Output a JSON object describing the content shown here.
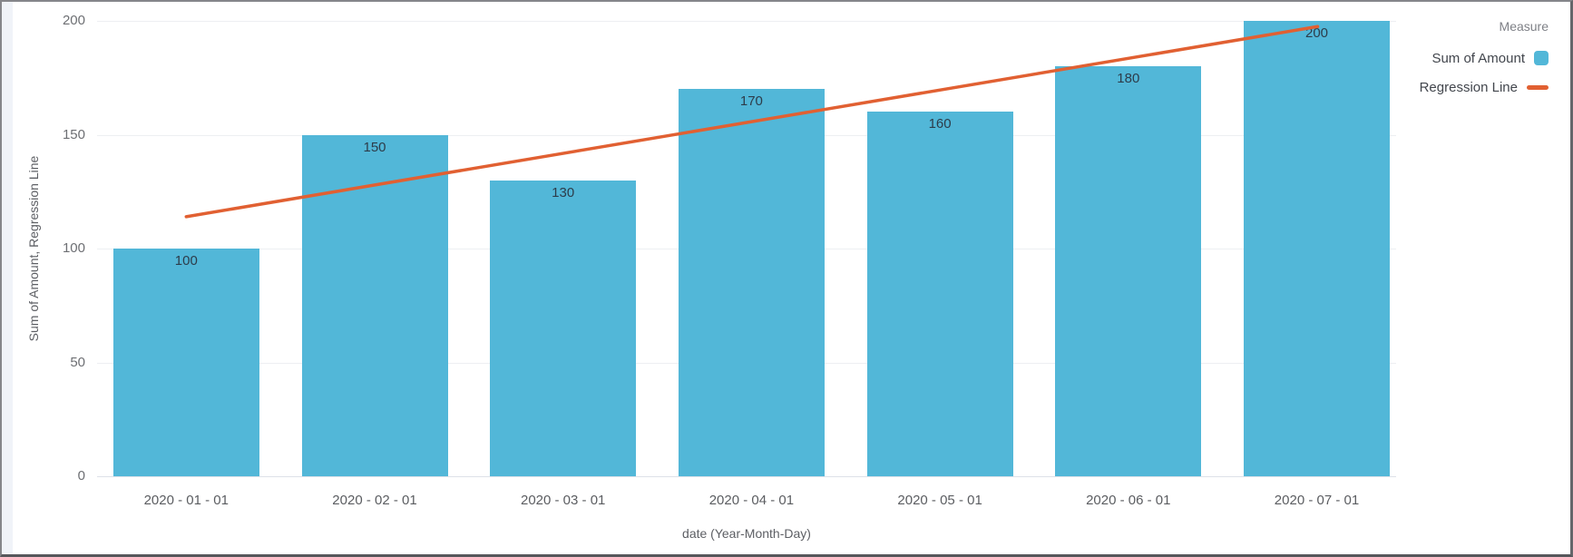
{
  "chart_data": {
    "type": "bar",
    "title": "",
    "categories": [
      "2020 - 01 - 01",
      "2020 - 02 - 01",
      "2020 - 03 - 01",
      "2020 - 04 - 01",
      "2020 - 05 - 01",
      "2020 - 06 - 01",
      "2020 - 07 - 01"
    ],
    "series": [
      {
        "name": "Sum of Amount",
        "type": "bar",
        "color": "#52B7D8",
        "values": [
          100,
          150,
          130,
          170,
          160,
          180,
          200
        ]
      },
      {
        "name": "Regression Line",
        "type": "line",
        "color": "#E16032",
        "span_categories": [
          "2020 - 01 - 01",
          "2020 - 07 - 01"
        ],
        "values_at_span": [
          114,
          197.5
        ]
      }
    ],
    "bar_value_labels": [
      "100",
      "150",
      "130",
      "170",
      "160",
      "180",
      "200"
    ],
    "xlabel": "date (Year-Month-Day)",
    "ylabel": "Sum of Amount, Regression Line",
    "ylim": [
      0,
      200
    ],
    "yticks": [
      0,
      50,
      100,
      150,
      200
    ],
    "grid": "horizontal-light",
    "legend_position": "top-right"
  },
  "legend": {
    "title": "Measure",
    "items": [
      {
        "label": "Sum of Amount",
        "swatch": "square",
        "color": "#52B7D8"
      },
      {
        "label": "Regression Line",
        "swatch": "line",
        "color": "#E16032"
      }
    ]
  },
  "colors": {
    "bar": "#52B7D8",
    "regression_line": "#E16032",
    "background": "#FFFFFF",
    "left_gutter": "#F0F3F8",
    "gridline": "#EDEFF2",
    "zero_line": "#DDE1E8",
    "y_tick_label": "#6D6F73",
    "x_tick_label": "#5B5D61",
    "axis_title": "#5D5F64",
    "bar_value_label": "#2D3C4A",
    "legend_label": "#42464D",
    "legend_title": "#7F8187"
  }
}
